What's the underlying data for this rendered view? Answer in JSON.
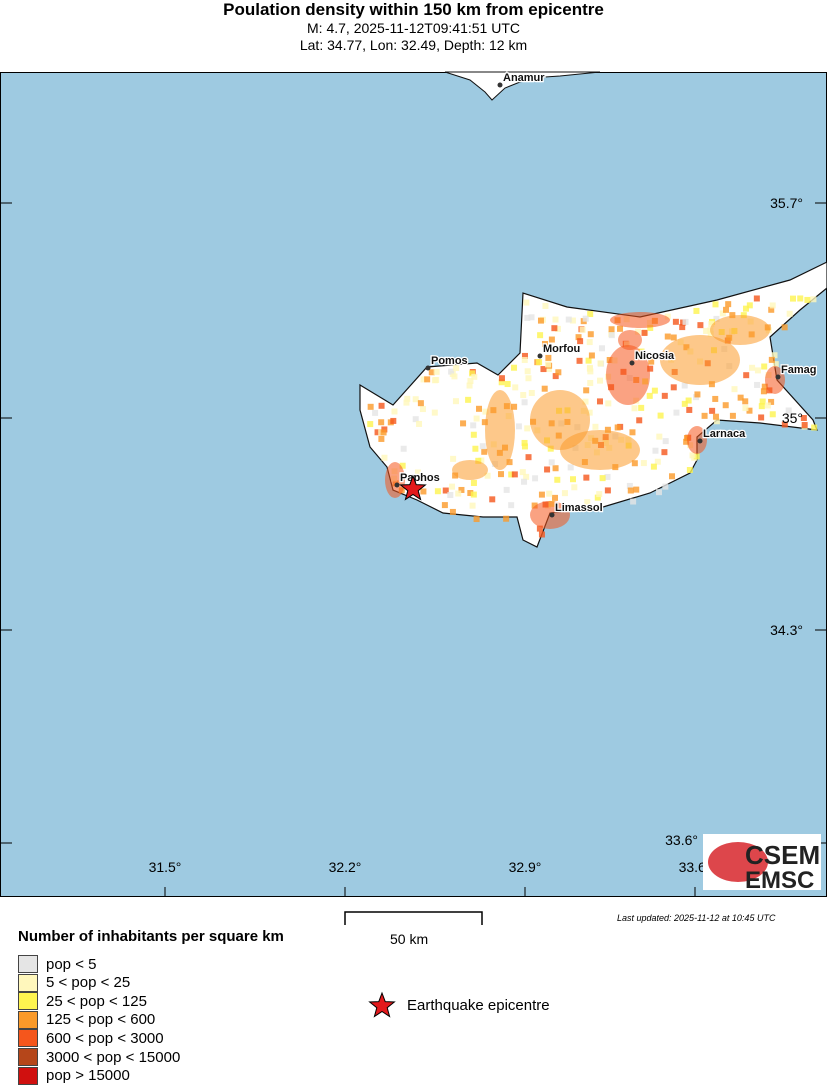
{
  "header": {
    "title": "Poulation density within 150 km from epicentre",
    "line2": "M: 4.7,  2025-11-12T09:41:51 UTC",
    "line3": "Lat: 34.77, Lon: 32.49, Depth: 12 km"
  },
  "map": {
    "colors": {
      "sea": "#9ecae1",
      "land": "#ffffff",
      "coast": "#111111"
    },
    "lon_ticks": [
      "31.5°",
      "32.2°",
      "32.9°",
      "33.6°"
    ],
    "lat_ticks": [
      "35.7°",
      "35°",
      "34.3°",
      "33.6°"
    ],
    "cities": [
      "Anamur",
      "Pomos",
      "Morfou",
      "Nicosia",
      "Famag",
      "Larnaca",
      "Paphos",
      "Limassol"
    ],
    "epicentre": {
      "lat": 34.77,
      "lon": 32.49,
      "icon": "red-star"
    },
    "logo": {
      "top": "CSEM",
      "bottom": "EMSC"
    }
  },
  "scale": {
    "label": "50 km"
  },
  "updated": "Last updated: 2025-11-12 at 10:45 UTC",
  "legend": {
    "title": "Number of inhabitants per square km",
    "items": [
      {
        "label": "pop < 5",
        "color": "#e5e5e5"
      },
      {
        "label": "5 < pop < 25",
        "color": "#fff7bc"
      },
      {
        "label": "25 < pop < 125",
        "color": "#fef44f"
      },
      {
        "label": "125 < pop < 600",
        "color": "#fb9a29"
      },
      {
        "label": "600 < pop < 3000",
        "color": "#f5561c"
      },
      {
        "label": "3000 < pop < 15000",
        "color": "#b5461a"
      },
      {
        "label": "pop > 15000",
        "color": "#d0100f"
      }
    ],
    "epicentre_label": "Earthquake epicentre"
  }
}
